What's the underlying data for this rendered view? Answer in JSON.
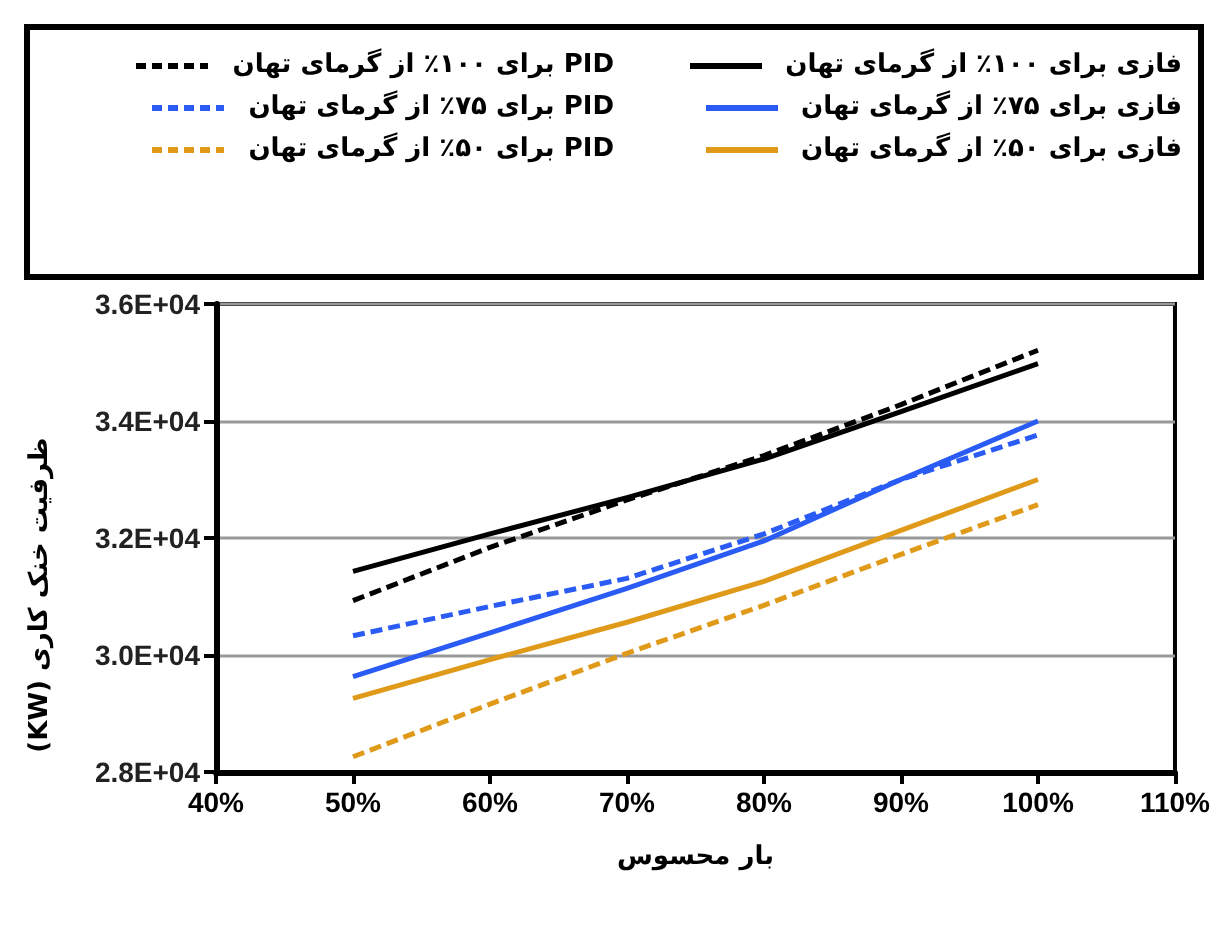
{
  "chart_data": {
    "type": "line",
    "xlabel": "بار محسوس",
    "ylabel": "ظرفیت خنک کاری (KW)",
    "x": [
      50,
      60,
      70,
      80,
      90,
      100
    ],
    "xlim": [
      40,
      110
    ],
    "xticks": [
      {
        "value": 40,
        "label": "40%"
      },
      {
        "value": 50,
        "label": "50%"
      },
      {
        "value": 60,
        "label": "60%"
      },
      {
        "value": 70,
        "label": "70%"
      },
      {
        "value": 80,
        "label": "80%"
      },
      {
        "value": 90,
        "label": "90%"
      },
      {
        "value": 100,
        "label": "100%"
      },
      {
        "value": 110,
        "label": "110%"
      }
    ],
    "ylim": [
      28000,
      36000
    ],
    "yticks": [
      {
        "value": 28000,
        "label": "2.8E+04"
      },
      {
        "value": 30000,
        "label": "3.0E+04"
      },
      {
        "value": 32000,
        "label": "3.2E+04"
      },
      {
        "value": 34000,
        "label": "3.4E+04"
      },
      {
        "value": 36000,
        "label": "3.6E+04"
      }
    ],
    "grid": "y",
    "legend": "top",
    "marker": "none",
    "series": [
      {
        "name": "فازی برای ۱۰۰٪ از گرمای تهان",
        "color": "#000000",
        "line_style": "solid",
        "values": [
          31430,
          32070,
          32690,
          33350,
          34160,
          34980
        ]
      },
      {
        "name": "PID برای ۱۰۰٪ از گرمای تهان",
        "color": "#000000",
        "line_style": "dashed",
        "values": [
          30930,
          31840,
          32650,
          33410,
          34280,
          35210
        ]
      },
      {
        "name": "فازی برای ۷۵٪ از گرمای تهان",
        "color": "#2a5cf5",
        "line_style": "solid",
        "values": [
          29630,
          30380,
          31140,
          31950,
          33000,
          34000
        ]
      },
      {
        "name": "PID برای ۷۵٪ از گرمای تهان",
        "color": "#2a5cf5",
        "line_style": "dashed",
        "values": [
          30330,
          30830,
          31310,
          32070,
          33000,
          33760
        ]
      },
      {
        "name": "فازی برای ۵۰٪ از گرمای تهان",
        "color": "#e09a1a",
        "line_style": "solid",
        "values": [
          29260,
          29920,
          30560,
          31260,
          32130,
          33000
        ]
      },
      {
        "name": "PID برای ۵۰٪ از گرمای تهان",
        "color": "#e09a1a",
        "line_style": "dashed",
        "values": [
          28260,
          29160,
          30030,
          30850,
          31720,
          32570
        ]
      }
    ]
  }
}
